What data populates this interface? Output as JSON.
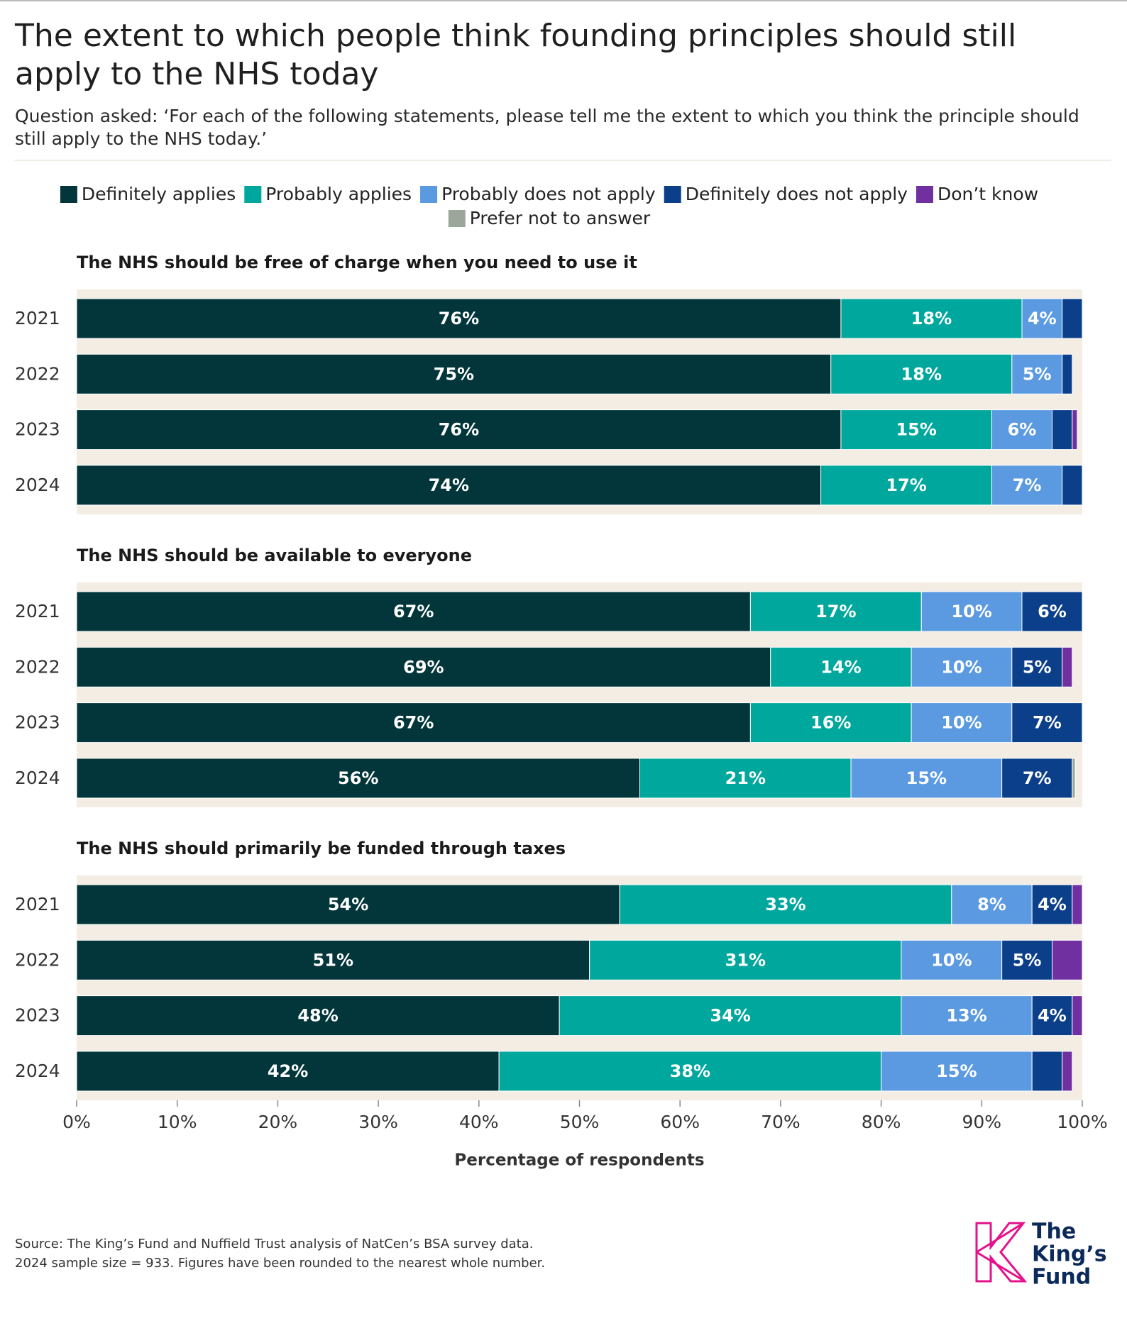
{
  "title": "The extent to which people think founding principles should still apply to the NHS today",
  "subtitle": "Question asked: ‘For each of the following statements, please tell me the extent to which you think the principle should still apply to the NHS today.’",
  "source": [
    "Source: The King’s Fund and Nuffield Trust analysis of NatCen’s BSA survey data.",
    "2024 sample size = 933. Figures have been rounded to the nearest whole number."
  ],
  "logo": [
    "The",
    "King’s",
    "Fund"
  ],
  "chart_data": {
    "type": "stacked-bar-horizontal",
    "panels": [
      "The NHS should be free of charge when you need to use it",
      "The NHS should be available to everyone",
      "The NHS should primarily be funded through taxes"
    ],
    "categories": [
      "2021",
      "2022",
      "2023",
      "2024"
    ],
    "xlim": [
      0,
      100
    ],
    "xticks": [
      {
        "value": 0,
        "label": "0%"
      },
      {
        "value": 10,
        "label": "10%"
      },
      {
        "value": 20,
        "label": "20%"
      },
      {
        "value": 30,
        "label": "30%"
      },
      {
        "value": 40,
        "label": "40%"
      },
      {
        "value": 50,
        "label": "50%"
      },
      {
        "value": 60,
        "label": "60%"
      },
      {
        "value": 70,
        "label": "70%"
      },
      {
        "value": 80,
        "label": "80%"
      },
      {
        "value": 90,
        "label": "90%"
      },
      {
        "value": 100,
        "label": "100%"
      }
    ],
    "xlabel": "Percentage of respondents",
    "series": [
      {
        "name": "Definitely applies",
        "color": "#02363a",
        "values": [
          [
            76,
            75,
            76,
            74
          ],
          [
            67,
            69,
            67,
            56
          ],
          [
            54,
            51,
            48,
            42
          ]
        ],
        "value_labels": [
          [
            "76%",
            "75%",
            "76%",
            "74%"
          ],
          [
            "67%",
            "69%",
            "67%",
            "56%"
          ],
          [
            "54%",
            "51%",
            "48%",
            "42%"
          ]
        ]
      },
      {
        "name": "Probably applies",
        "color": "#00a79d",
        "values": [
          [
            18,
            18,
            15,
            17
          ],
          [
            17,
            14,
            16,
            21
          ],
          [
            33,
            31,
            34,
            38
          ]
        ],
        "value_labels": [
          [
            "18%",
            "18%",
            "15%",
            "17%"
          ],
          [
            "17%",
            "14%",
            "16%",
            "21%"
          ],
          [
            "33%",
            "31%",
            "34%",
            "38%"
          ]
        ]
      },
      {
        "name": "Probably does not apply",
        "color": "#5b9ae0",
        "values": [
          [
            4,
            5,
            6,
            7
          ],
          [
            10,
            10,
            10,
            15
          ],
          [
            8,
            10,
            13,
            15
          ]
        ],
        "value_labels": [
          [
            "4%",
            "5%",
            "6%",
            "7%"
          ],
          [
            "10%",
            "10%",
            "10%",
            "15%"
          ],
          [
            "8%",
            "10%",
            "13%",
            "15%"
          ]
        ]
      },
      {
        "name": "Definitely does not apply",
        "color": "#0b3f8a",
        "values": [
          [
            2,
            1,
            2,
            2
          ],
          [
            6,
            5,
            7,
            7
          ],
          [
            4,
            5,
            4,
            3
          ]
        ],
        "value_labels": [
          [
            null,
            null,
            null,
            null
          ],
          [
            "6%",
            "5%",
            "7%",
            "7%"
          ],
          [
            "4%",
            "5%",
            "4%",
            null
          ]
        ]
      },
      {
        "name": "Don’t know",
        "color": "#7030a0",
        "values": [
          [
            0,
            0,
            0.5,
            0
          ],
          [
            0,
            1,
            0,
            0
          ],
          [
            1,
            3,
            1,
            1
          ]
        ],
        "value_labels": [
          [
            null,
            null,
            null,
            null
          ],
          [
            null,
            null,
            null,
            null
          ],
          [
            null,
            null,
            null,
            null
          ]
        ]
      },
      {
        "name": "Prefer not to answer",
        "color": "#9ca69b",
        "values": [
          [
            0,
            0,
            0,
            0
          ],
          [
            0,
            0,
            0,
            0.3
          ],
          [
            0,
            0,
            0,
            0
          ]
        ],
        "value_labels": [
          [
            null,
            null,
            null,
            null
          ],
          [
            null,
            null,
            null,
            null
          ],
          [
            null,
            null,
            null,
            null
          ]
        ]
      }
    ]
  }
}
